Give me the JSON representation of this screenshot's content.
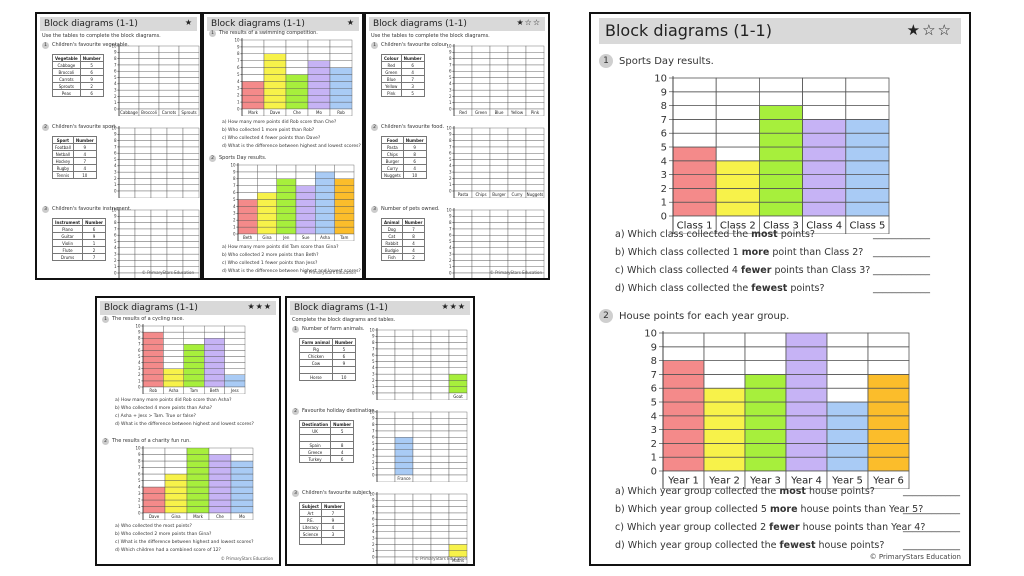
{
  "colors": {
    "red": "#f48a8a",
    "yellow": "#f7f24a",
    "green": "#a7ef3c",
    "purple": "#c6b3f5",
    "blue": "#a9cbf5",
    "orange": "#fbbd2b"
  },
  "sheets_small": [
    {
      "title": "Block diagrams (1-1)",
      "stars": "★",
      "intro": "Use the tables to complete the block diagrams.",
      "sections": [
        {
          "q": "Children's favourite vegetable.",
          "headers": [
            "Vegetable",
            "Number"
          ],
          "rows": [
            [
              "Cabbage",
              "5"
            ],
            [
              "Broccoli",
              "6"
            ],
            [
              "Carrots",
              "9"
            ],
            [
              "Sprouts",
              "2"
            ],
            [
              "Peas",
              "6"
            ]
          ],
          "categories": [
            "Cabbage",
            "Broccoli",
            "Carrots",
            "Sprouts"
          ],
          "values": []
        },
        {
          "q": "Children's favourite sport.",
          "headers": [
            "Sport",
            "Number"
          ],
          "rows": [
            [
              "Football",
              "9"
            ],
            [
              "Netball",
              "4"
            ],
            [
              "Hockey",
              "7"
            ],
            [
              "Rugby",
              "4"
            ],
            [
              "Tennis",
              "10"
            ]
          ],
          "categories": [],
          "values": []
        },
        {
          "q": "Children's favourite instrument.",
          "headers": [
            "Instrument",
            "Number"
          ],
          "rows": [
            [
              "Piano",
              "6"
            ],
            [
              "Guitar",
              "9"
            ],
            [
              "Violin",
              "1"
            ],
            [
              "Flute",
              "2"
            ],
            [
              "Drums",
              "7"
            ]
          ],
          "categories": [],
          "values": []
        }
      ]
    },
    {
      "title": "Block diagrams (1-1)",
      "stars": "★",
      "intro": "",
      "sections": []
    },
    {
      "title": "Block diagrams (1-1)",
      "stars": "★☆☆",
      "intro": "Use the tables to complete the block diagrams.",
      "sections": [
        {
          "q": "Children's favourite colour.",
          "headers": [
            "Colour",
            "Number"
          ],
          "rows": [
            [
              "Red",
              "6"
            ],
            [
              "Green",
              "4"
            ],
            [
              "Blue",
              "7"
            ],
            [
              "Yellow",
              "3"
            ],
            [
              "Pink",
              "5"
            ]
          ],
          "categories": [
            "Red",
            "Green",
            "Blue",
            "Yellow",
            "Pink"
          ],
          "values": []
        },
        {
          "q": "Children's favourite food.",
          "headers": [
            "Food",
            "Number"
          ],
          "rows": [
            [
              "Pasta",
              "9"
            ],
            [
              "Chips",
              "8"
            ],
            [
              "Burger",
              "6"
            ],
            [
              "Curry",
              "4"
            ],
            [
              "Nuggets",
              "10"
            ]
          ],
          "categories": [
            "Pasta",
            "Chips",
            "Burger",
            "Curry",
            "Nuggets"
          ],
          "values": []
        },
        {
          "q": "Number of pets owned.",
          "headers": [
            "Animal",
            "Number"
          ],
          "rows": [
            [
              "Dog",
              "7"
            ],
            [
              "Cat",
              "8"
            ],
            [
              "Rabbit",
              "4"
            ],
            [
              "Budgie",
              "4"
            ],
            [
              "Fish",
              "2"
            ]
          ],
          "categories": [],
          "values": []
        }
      ]
    },
    {
      "title": "Block diagrams (1-1)",
      "stars": "★★★",
      "intro": "",
      "sections": []
    },
    {
      "title": "Block diagrams (1-1)",
      "stars": "★★★",
      "intro": "Complete the block diagrams and tables.",
      "sections": [
        {
          "q": "Number of farm animals.",
          "headers": [
            "Farm animal",
            "Number"
          ],
          "rows": [
            [
              "Pig",
              "5"
            ],
            [
              "Chicken",
              "6"
            ],
            [
              "Cow",
              "9"
            ],
            [
              "",
              ""
            ],
            [
              "Horse",
              "10"
            ]
          ],
          "categories": [
            "",
            "",
            "",
            "",
            "Goat"
          ],
          "values": [
            0,
            0,
            0,
            0,
            3
          ]
        },
        {
          "q": "Favourite holiday destination.",
          "headers": [
            "Destination",
            "Number"
          ],
          "rows": [
            [
              "UK",
              "5"
            ],
            [
              "",
              ""
            ],
            [
              "Spain",
              "8"
            ],
            [
              "Greece",
              "4"
            ],
            [
              "Turkey",
              "6"
            ]
          ],
          "categories": [
            "",
            "France",
            "",
            "",
            ""
          ],
          "values": [
            0,
            6,
            0,
            0,
            0
          ]
        },
        {
          "q": "Children's favourite subject.",
          "headers": [
            "Subject",
            "Number"
          ],
          "rows": [
            [
              "Art",
              "7"
            ],
            [
              "P.E.",
              "9"
            ],
            [
              "Literacy",
              "4"
            ],
            [
              "Science",
              "3"
            ],
            [
              "",
              ""
            ]
          ],
          "categories": [
            "",
            "",
            "",
            "",
            "Maths"
          ],
          "values": [
            0,
            0,
            0,
            0,
            2
          ]
        }
      ]
    }
  ],
  "sheet2": {
    "s1": {
      "q": "The results of a swimming competition.",
      "categories": [
        "Mark",
        "Dave",
        "Che",
        "Mo",
        "Rob"
      ],
      "values": [
        4,
        8,
        5,
        7,
        6
      ],
      "ylim": [
        0,
        10
      ],
      "questions": [
        "a) How many more points did Rob score than Che?",
        "b) Who collected 1 more point than Rob?",
        "c) Who collected 4 fewer points than Dave?",
        "d) What is the difference between highest and lowest scores?"
      ]
    },
    "s2": {
      "q": "Sports Day results.",
      "categories": [
        "Beth",
        "Gina",
        "Jen",
        "Sue",
        "Asha",
        "Tam"
      ],
      "values": [
        5,
        6,
        8,
        7,
        9,
        8
      ],
      "ylim": [
        0,
        10
      ],
      "questions": [
        "a) How many more points did Tam score than Gina?",
        "b) Who collected 2 more points than Beth?",
        "c) Who collected 1 fewer points than Jess?",
        "d) What is the difference between highest and lowest scores?"
      ]
    }
  },
  "sheet4": {
    "s1": {
      "q": "The results of a cycling race.",
      "categories": [
        "Rob",
        "Asha",
        "Tam",
        "Beth",
        "Jess"
      ],
      "values": [
        9,
        3,
        7,
        8,
        2
      ],
      "ylim": [
        0,
        10
      ],
      "questions": [
        "a) How many more points did Rob score than Asha?",
        "b) Who collected 4 more points than Asha?",
        "c) Asha + Jess > Tam. True or false?",
        "d) What is the difference between highest and lowest scores?"
      ]
    },
    "s2": {
      "q": "The results of a charity fun run.",
      "categories": [
        "Dave",
        "Gina",
        "Mark",
        "Che",
        "Mo"
      ],
      "values": [
        4,
        6,
        10,
        9,
        8
      ],
      "ylim": [
        0,
        10
      ],
      "questions": [
        "a) Who collected the most points?",
        "b) Who collected 2 more points than Gina?",
        "c) What is the difference between highest and lowest scores?",
        "d) Which children had a combined score of 12?"
      ]
    }
  },
  "big": {
    "title": "Block diagrams (1-1)",
    "stars": "★☆☆",
    "footer": "© PrimaryStars Education",
    "q1": {
      "label": "Sports Day results.",
      "number": "1"
    },
    "q2": {
      "label": "House points for each year group.",
      "number": "2"
    },
    "q1_questions": [
      {
        "pre": "a)  Which class collected the ",
        "bold": "most",
        "post": " points?"
      },
      {
        "pre": "b)  Which class collected 1 ",
        "bold": "more",
        "post": " point than Class 2?"
      },
      {
        "pre": "c)  Which class collected 4 ",
        "bold": "fewer",
        "post": " points than Class 3?"
      },
      {
        "pre": "d)  Which class collected the ",
        "bold": "fewest",
        "post": " points?"
      }
    ],
    "q2_questions": [
      {
        "pre": "a)  Which year group collected the ",
        "bold": "most",
        "post": " house points?"
      },
      {
        "pre": "b)  Which year group collected 5 ",
        "bold": "more",
        "post": " house points than Year 5?"
      },
      {
        "pre": "c)  Which year group collected 2 ",
        "bold": "fewer",
        "post": " house points than Year 4?"
      },
      {
        "pre": "d)  Which year group collected the ",
        "bold": "fewest",
        "post": " house points?"
      }
    ],
    "answer_line": "____________"
  },
  "chart_data": [
    {
      "type": "bar",
      "title": "Sports Day results.",
      "categories": [
        "Class 1",
        "Class 2",
        "Class 3",
        "Class 4",
        "Class 5"
      ],
      "values": [
        5,
        4,
        8,
        7,
        7
      ],
      "ylim": [
        0,
        10
      ],
      "xlabel": "",
      "ylabel": ""
    },
    {
      "type": "bar",
      "title": "House points for each year group.",
      "categories": [
        "Year 1",
        "Year 2",
        "Year 3",
        "Year 4",
        "Year 5",
        "Year 6"
      ],
      "values": [
        8,
        6,
        7,
        10,
        5,
        7
      ],
      "ylim": [
        0,
        10
      ],
      "xlabel": "",
      "ylabel": ""
    }
  ]
}
